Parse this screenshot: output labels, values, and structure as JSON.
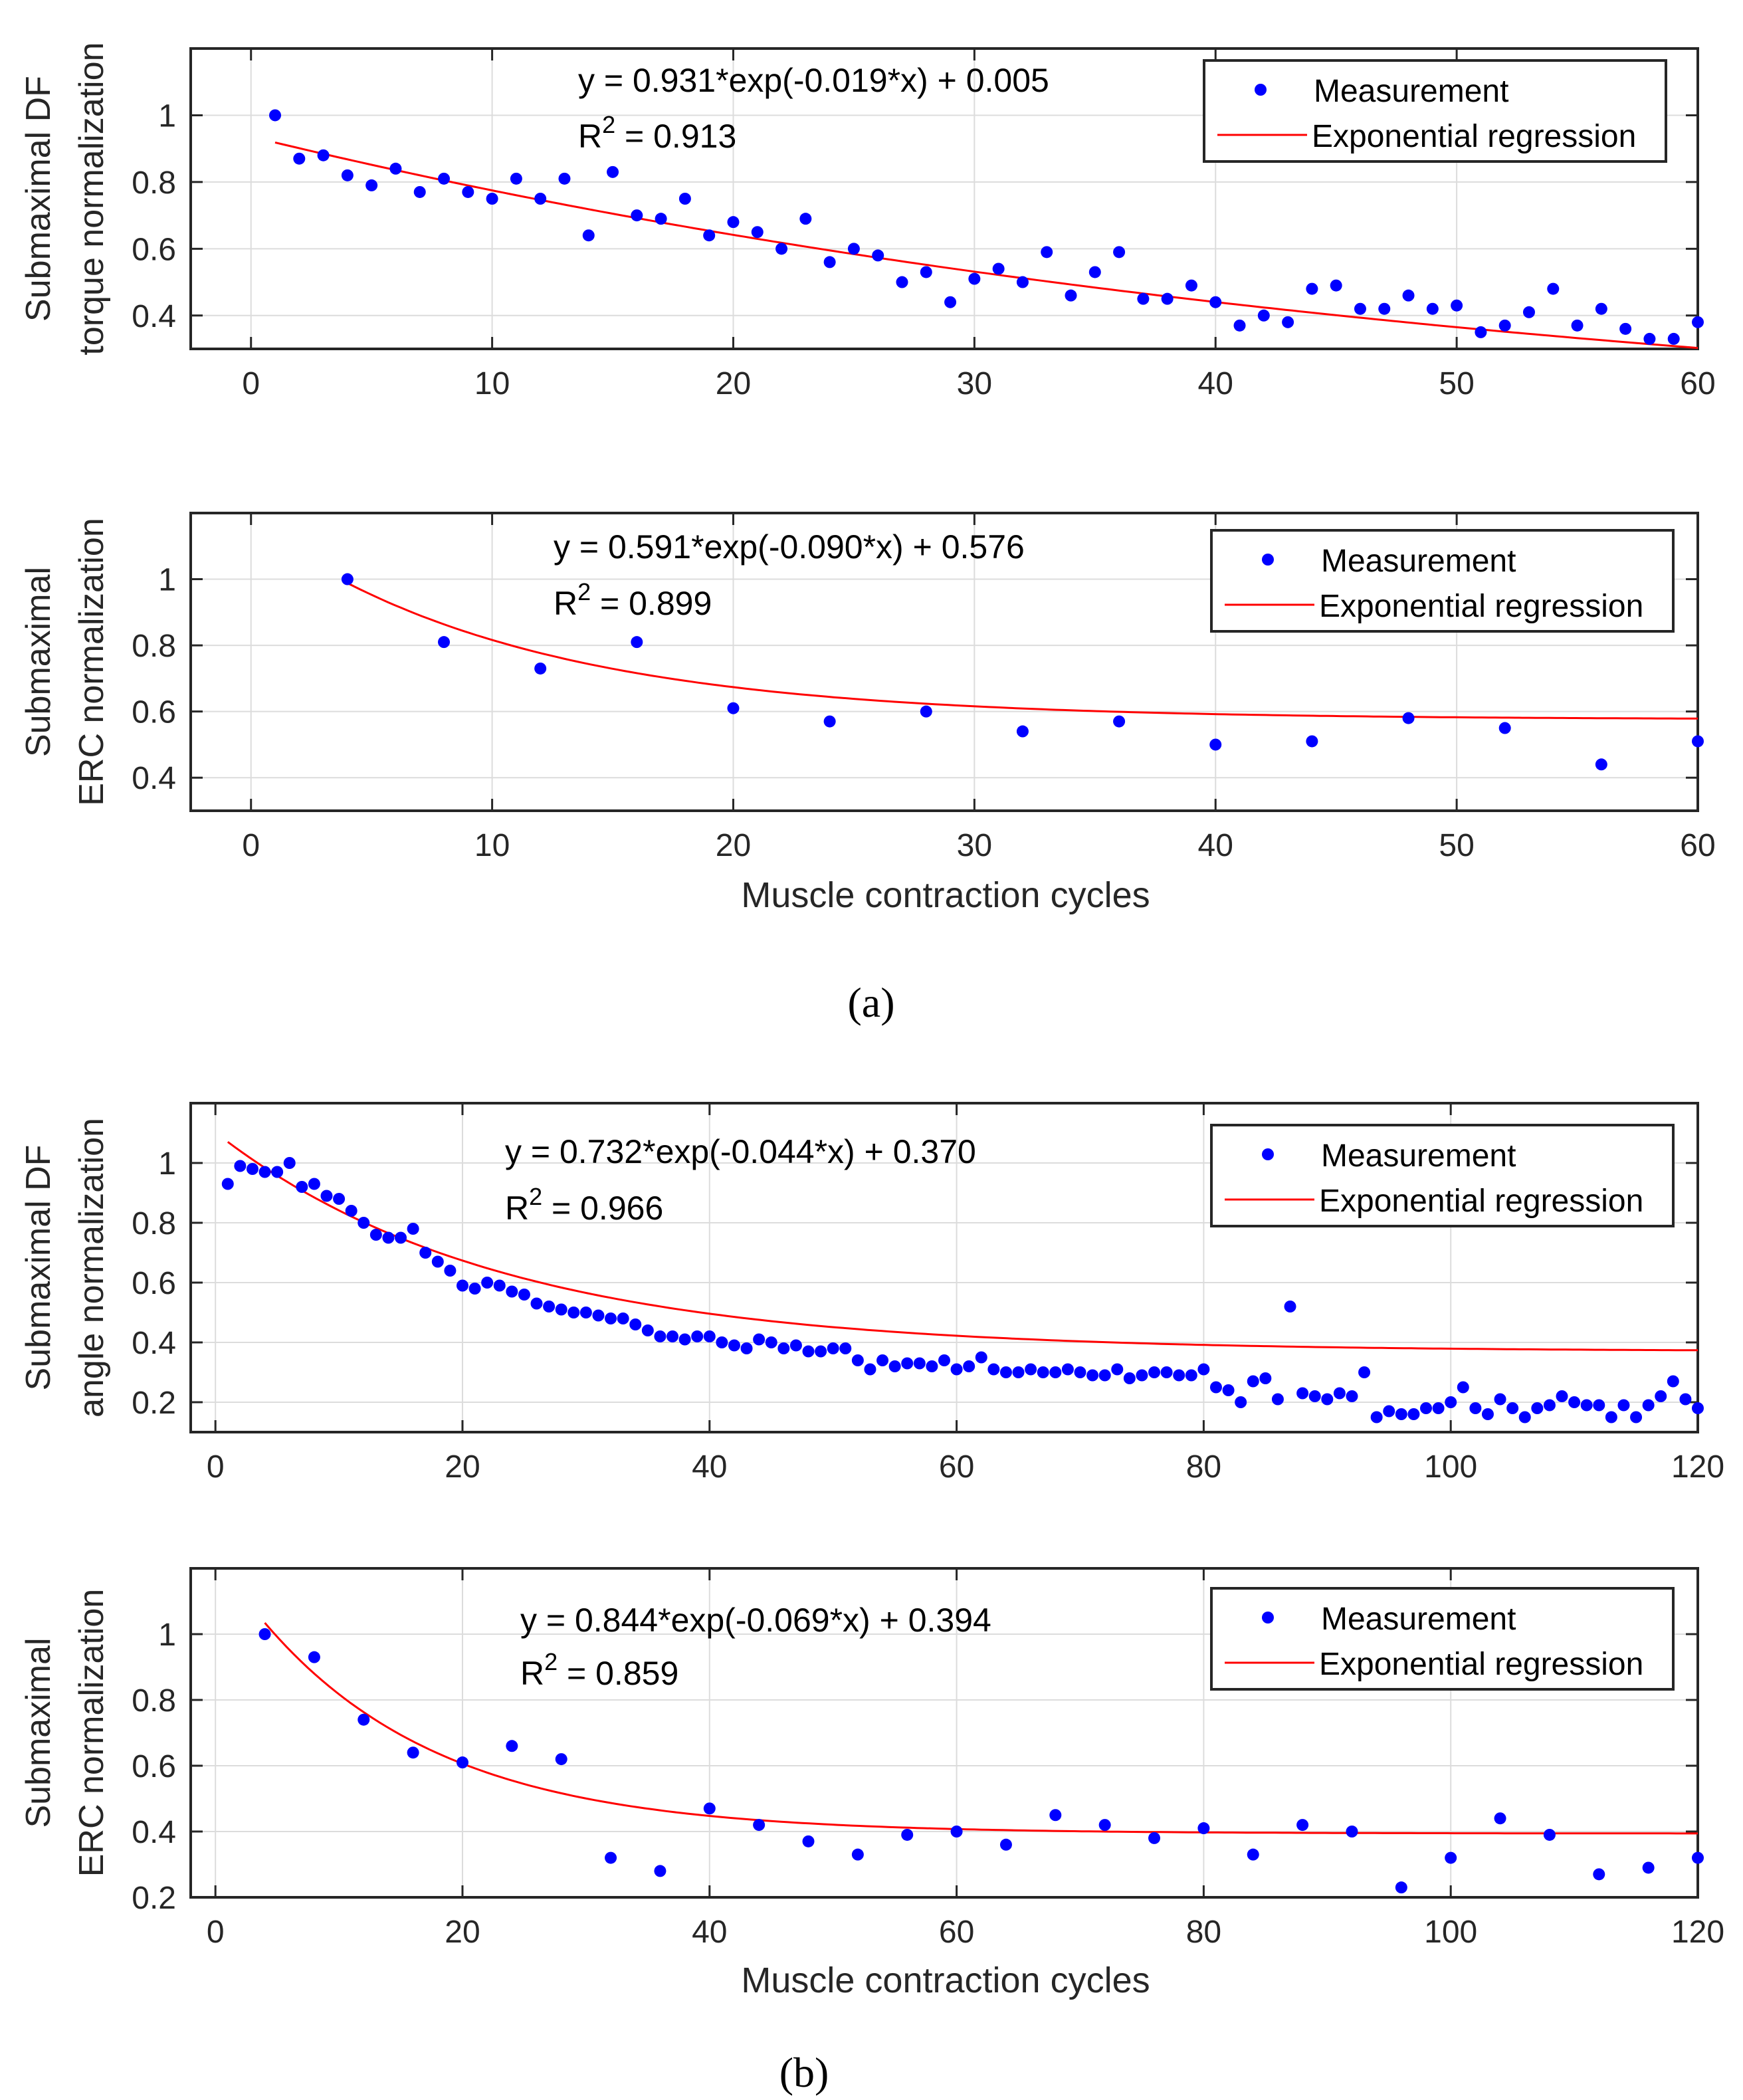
{
  "figure": {
    "caption_a": "(a)",
    "caption_b": "(b)"
  },
  "colors": {
    "measurement": "#0000ff",
    "regression": "#ff0000"
  },
  "chart_data": [
    {
      "id": "a1",
      "type": "scatter",
      "ylabel_lines": [
        "Submaximal DF",
        "torque normalization"
      ],
      "xlabel": "",
      "xlim": [
        -2.5,
        60
      ],
      "ylim": [
        0.3,
        1.2
      ],
      "xticks": [
        0,
        10,
        20,
        30,
        40,
        50,
        60
      ],
      "yticks": [
        0.4,
        0.6,
        0.8,
        1
      ],
      "ytick_labels": [
        "0.4",
        "0.6",
        "0.8",
        "1"
      ],
      "equation": "y = 0.931*exp(-0.019*x) + 0.005",
      "r2_label": "R",
      "r2_sup": "2",
      "r2_value": " = 0.913",
      "legend": [
        "Measurement",
        "Exponential regression"
      ],
      "fit": {
        "a": 0.931,
        "b": -0.019,
        "c": 0.005,
        "x_start": 1,
        "x_end": 60
      },
      "series": [
        {
          "name": "Measurement",
          "x": [
            1,
            2,
            3,
            4,
            5,
            6,
            7,
            8,
            9,
            10,
            11,
            12,
            13,
            14,
            15,
            16,
            17,
            18,
            19,
            20,
            21,
            22,
            23,
            24,
            25,
            26,
            27,
            28,
            29,
            30,
            31,
            32,
            33,
            34,
            35,
            36,
            37,
            38,
            39,
            40,
            41,
            42,
            43,
            44,
            45,
            46,
            47,
            48,
            49,
            50,
            51,
            52,
            53,
            54,
            55,
            56,
            57,
            58,
            59,
            60
          ],
          "y": [
            1.0,
            0.87,
            0.88,
            0.82,
            0.79,
            0.84,
            0.77,
            0.81,
            0.77,
            0.75,
            0.81,
            0.75,
            0.81,
            0.64,
            0.83,
            0.7,
            0.69,
            0.75,
            0.64,
            0.68,
            0.65,
            0.6,
            0.69,
            0.56,
            0.6,
            0.58,
            0.5,
            0.53,
            0.44,
            0.51,
            0.54,
            0.5,
            0.59,
            0.46,
            0.53,
            0.59,
            0.45,
            0.45,
            0.49,
            0.44,
            0.37,
            0.4,
            0.38,
            0.48,
            0.49,
            0.42,
            0.42,
            0.46,
            0.42,
            0.43,
            0.35,
            0.37,
            0.41,
            0.48,
            0.37,
            0.42,
            0.36,
            0.33,
            0.33,
            0.38
          ]
        }
      ]
    },
    {
      "id": "a2",
      "type": "scatter",
      "ylabel_lines": [
        "Submaximal",
        "ERC normalization"
      ],
      "xlabel": "Muscle contraction cycles",
      "xlim": [
        -2.5,
        60
      ],
      "ylim": [
        0.3,
        1.2
      ],
      "xticks": [
        0,
        10,
        20,
        30,
        40,
        50,
        60
      ],
      "yticks": [
        0.4,
        0.6,
        0.8,
        1
      ],
      "ytick_labels": [
        "0.4",
        "0.6",
        "0.8",
        "1"
      ],
      "equation": "y = 0.591*exp(-0.090*x) + 0.576",
      "r2_label": "R",
      "r2_sup": "2",
      "r2_value": " = 0.899",
      "legend": [
        "Measurement",
        "Exponential regression"
      ],
      "fit": {
        "a": 0.591,
        "b": -0.09,
        "c": 0.576,
        "x_start": 4,
        "x_end": 60
      },
      "series": [
        {
          "name": "Measurement",
          "x": [
            4,
            8,
            12,
            16,
            20,
            24,
            28,
            32,
            36,
            40,
            44,
            48,
            52,
            56,
            60
          ],
          "y": [
            1.0,
            0.81,
            0.73,
            0.81,
            0.61,
            0.57,
            0.6,
            0.54,
            0.57,
            0.5,
            0.51,
            0.58,
            0.55,
            0.44,
            0.51
          ]
        }
      ]
    },
    {
      "id": "b1",
      "type": "scatter",
      "ylabel_lines": [
        "Submaximal DF",
        "angle normalization"
      ],
      "xlabel": "",
      "xlim": [
        -2,
        120
      ],
      "ylim": [
        0.1,
        1.2
      ],
      "xticks": [
        0,
        20,
        40,
        60,
        80,
        100,
        120
      ],
      "yticks": [
        0.2,
        0.4,
        0.6,
        0.8,
        1
      ],
      "ytick_labels": [
        "0.2",
        "0.4",
        "0.6",
        "0.8",
        "1"
      ],
      "equation": "y = 0.732*exp(-0.044*x) + 0.370",
      "r2_label": "R",
      "r2_sup": "2",
      "r2_value": " = 0.966",
      "legend": [
        "Measurement",
        "Exponential regression"
      ],
      "fit": {
        "a": 0.732,
        "b": -0.044,
        "c": 0.37,
        "x_start": 1,
        "x_end": 120
      },
      "series": [
        {
          "name": "Measurement",
          "x": [
            1,
            2,
            3,
            4,
            5,
            6,
            7,
            8,
            9,
            10,
            11,
            12,
            13,
            14,
            15,
            16,
            17,
            18,
            19,
            20,
            21,
            22,
            23,
            24,
            25,
            26,
            27,
            28,
            29,
            30,
            31,
            32,
            33,
            34,
            35,
            36,
            37,
            38,
            39,
            40,
            41,
            42,
            43,
            44,
            45,
            46,
            47,
            48,
            49,
            50,
            51,
            52,
            53,
            54,
            55,
            56,
            57,
            58,
            59,
            60,
            61,
            62,
            63,
            64,
            65,
            66,
            67,
            68,
            69,
            70,
            71,
            72,
            73,
            74,
            75,
            76,
            77,
            78,
            79,
            80,
            81,
            82,
            83,
            84,
            85,
            86,
            87,
            88,
            89,
            90,
            91,
            92,
            93,
            94,
            95,
            96,
            97,
            98,
            99,
            100,
            101,
            102,
            103,
            104,
            105,
            106,
            107,
            108,
            109,
            110,
            111,
            112,
            113,
            114,
            115,
            116,
            117,
            118,
            119,
            120
          ],
          "y": [
            0.93,
            0.99,
            0.98,
            0.97,
            0.97,
            1.0,
            0.92,
            0.93,
            0.89,
            0.88,
            0.84,
            0.8,
            0.76,
            0.75,
            0.75,
            0.78,
            0.7,
            0.67,
            0.64,
            0.59,
            0.58,
            0.6,
            0.59,
            0.57,
            0.56,
            0.53,
            0.52,
            0.51,
            0.5,
            0.5,
            0.49,
            0.48,
            0.48,
            0.46,
            0.44,
            0.42,
            0.42,
            0.41,
            0.42,
            0.42,
            0.4,
            0.39,
            0.38,
            0.41,
            0.4,
            0.38,
            0.39,
            0.37,
            0.37,
            0.38,
            0.38,
            0.34,
            0.31,
            0.34,
            0.32,
            0.33,
            0.33,
            0.32,
            0.34,
            0.31,
            0.32,
            0.35,
            0.31,
            0.3,
            0.3,
            0.31,
            0.3,
            0.3,
            0.31,
            0.3,
            0.29,
            0.29,
            0.31,
            0.28,
            0.29,
            0.3,
            0.3,
            0.29,
            0.29,
            0.31,
            0.25,
            0.24,
            0.2,
            0.27,
            0.28,
            0.21,
            0.52,
            0.23,
            0.22,
            0.21,
            0.23,
            0.22,
            0.3,
            0.15,
            0.17,
            0.16,
            0.16,
            0.18,
            0.18,
            0.2,
            0.25,
            0.18,
            0.16,
            0.21,
            0.18,
            0.15,
            0.18,
            0.19,
            0.22,
            0.2,
            0.19,
            0.19,
            0.15,
            0.19,
            0.15,
            0.19,
            0.22,
            0.27,
            0.21,
            0.18
          ]
        }
      ]
    },
    {
      "id": "b2",
      "type": "scatter",
      "ylabel_lines": [
        "Submaximal",
        "ERC normalization"
      ],
      "xlabel": "Muscle contraction cycles",
      "xlim": [
        -2,
        120
      ],
      "ylim": [
        0.2,
        1.2
      ],
      "xticks": [
        0,
        20,
        40,
        60,
        80,
        100,
        120
      ],
      "yticks": [
        0.2,
        0.4,
        0.6,
        0.8,
        1
      ],
      "ytick_labels": [
        "0.2",
        "0.4",
        "0.6",
        "0.8",
        "1"
      ],
      "equation": "y = 0.844*exp(-0.069*x) + 0.394",
      "r2_label": "R",
      "r2_sup": "2",
      "r2_value": " = 0.859",
      "legend": [
        "Measurement",
        "Exponential regression"
      ],
      "fit": {
        "a": 0.844,
        "b": -0.069,
        "c": 0.394,
        "x_start": 4,
        "x_end": 120
      },
      "series": [
        {
          "name": "Measurement",
          "x": [
            4,
            8,
            12,
            16,
            20,
            24,
            28,
            32,
            36,
            40,
            44,
            48,
            52,
            56,
            60,
            64,
            68,
            72,
            76,
            80,
            84,
            88,
            92,
            96,
            100,
            104,
            108,
            112,
            116,
            120
          ],
          "y": [
            1.0,
            0.93,
            0.74,
            0.64,
            0.61,
            0.66,
            0.62,
            0.32,
            0.28,
            0.47,
            0.42,
            0.37,
            0.33,
            0.39,
            0.4,
            0.36,
            0.45,
            0.42,
            0.38,
            0.41,
            0.33,
            0.42,
            0.4,
            0.23,
            0.32,
            0.44,
            0.39,
            0.27,
            0.29,
            0.32
          ]
        }
      ]
    }
  ]
}
